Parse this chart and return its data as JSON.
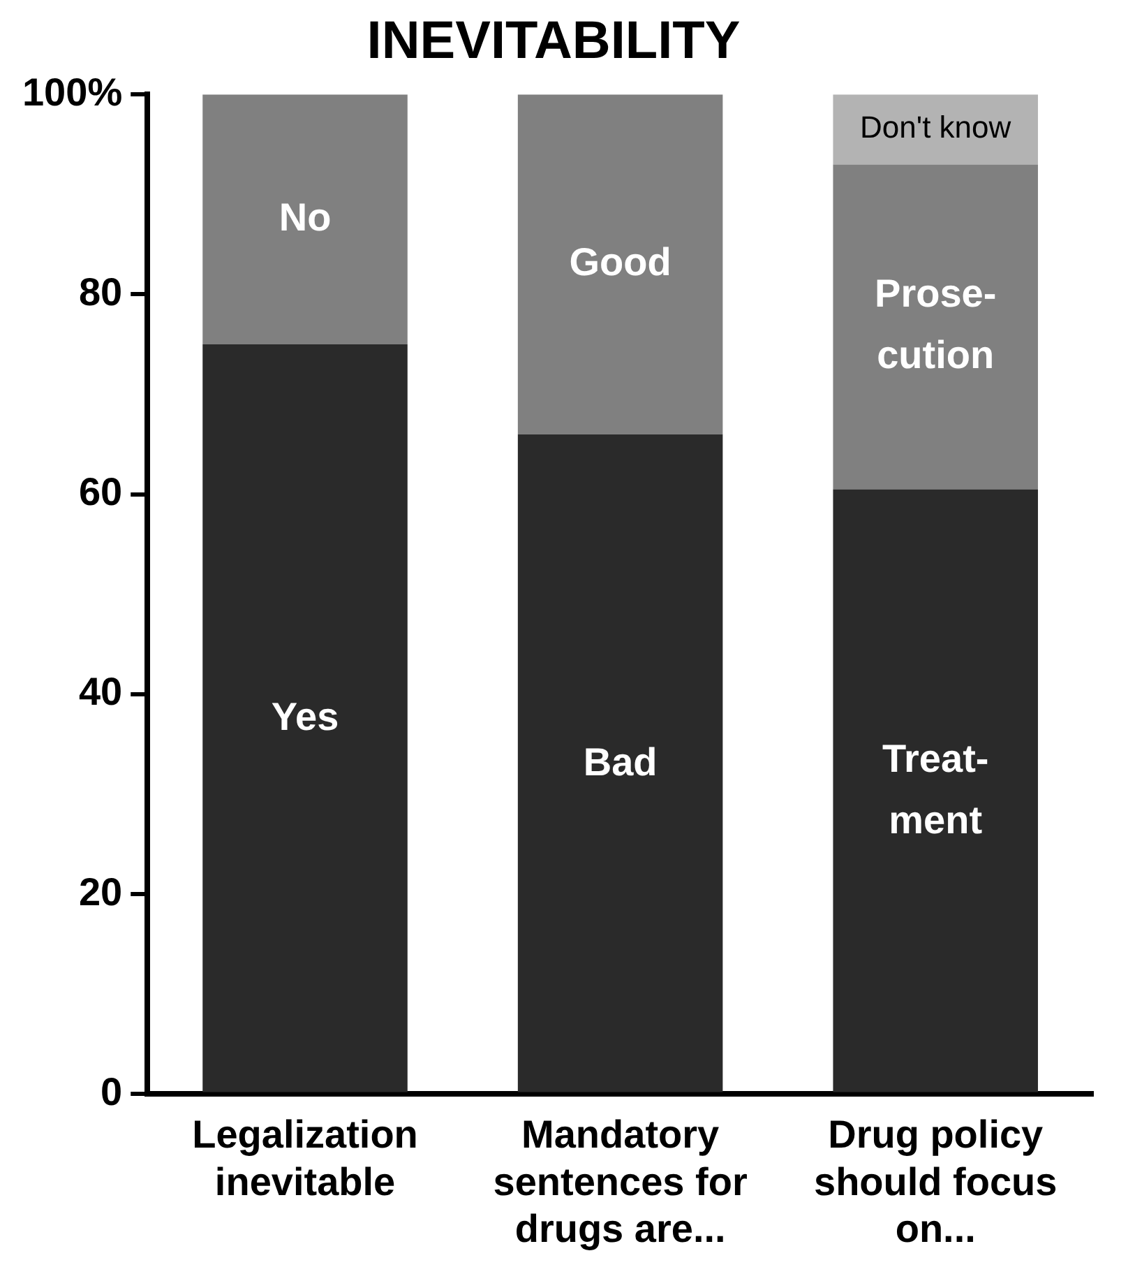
{
  "chart_data": {
    "type": "bar",
    "stacked": true,
    "title": "INEVITABILITY",
    "categories": [
      "Legalization inevitable",
      "Mandatory sentences for drugs are...",
      "Drug policy should focus on..."
    ],
    "series": [
      {
        "color": "#2a2a2a",
        "values": [
          75,
          66,
          60.5
        ]
      },
      {
        "color": "#808080",
        "values": [
          25,
          34,
          32.5
        ]
      },
      {
        "color": "#b3b3b3",
        "values": [
          null,
          null,
          7
        ]
      }
    ],
    "ylim": [
      0,
      100
    ],
    "yticks": [
      0,
      20,
      40,
      60,
      80,
      {
        "value": 100,
        "label": "100%"
      }
    ],
    "grid": false,
    "legend": false,
    "annotations": [
      "Yes",
      "No",
      "Bad",
      "Good",
      "Treat-\nment",
      "Prose-\ncution",
      "Don't know"
    ]
  }
}
